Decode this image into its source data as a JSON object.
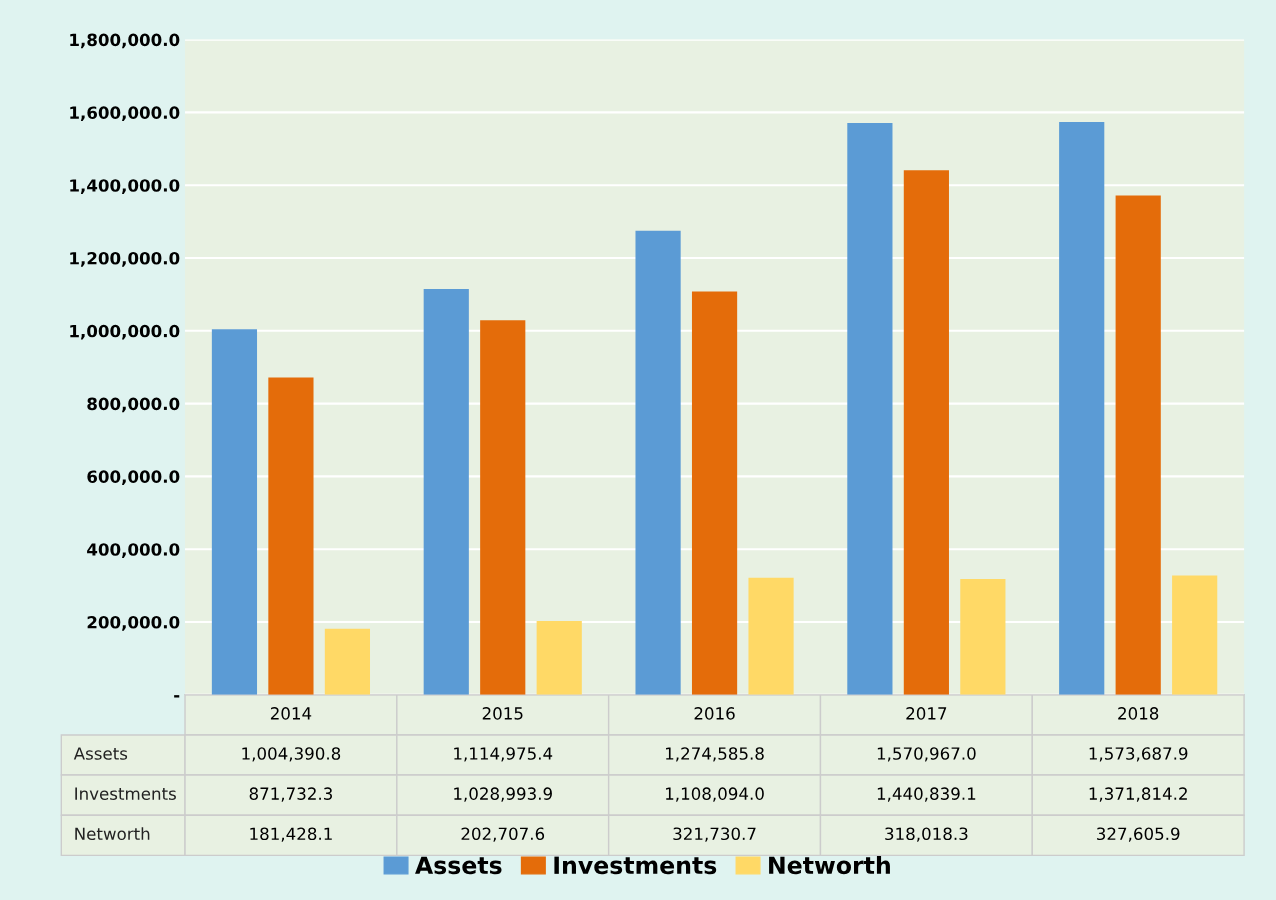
{
  "chart_data": {
    "type": "bar",
    "categories": [
      "2014",
      "2015",
      "2016",
      "2017",
      "2018"
    ],
    "series": [
      {
        "name": "Assets",
        "color": "#5b9bd5",
        "values": [
          1004390.8,
          1114975.4,
          1274585.8,
          1570967.0,
          1573687.9
        ],
        "value_labels": [
          "1,004,390.8",
          "1,114,975.4",
          "1,274,585.8",
          "1,570,967.0",
          "1,573,687.9"
        ]
      },
      {
        "name": "Investments",
        "color": "#e46c0a",
        "values": [
          871732.3,
          1028993.9,
          1108094.0,
          1440839.1,
          1371814.2
        ],
        "value_labels": [
          "871,732.3",
          "1,028,993.9",
          "1,108,094.0",
          "1,440,839.1",
          "1,371,814.2"
        ]
      },
      {
        "name": "Networth",
        "color": "#ffd966",
        "values": [
          181428.1,
          202707.6,
          321730.7,
          318018.3,
          327605.9
        ],
        "value_labels": [
          "181,428.1",
          "202,707.6",
          "321,730.7",
          "318,018.3",
          "327,605.9"
        ]
      }
    ],
    "ylim": [
      0,
      1800000
    ],
    "yticks": [
      {
        "value": 0,
        "label": "-"
      },
      {
        "value": 200000,
        "label": "200,000.0"
      },
      {
        "value": 400000,
        "label": "400,000.0"
      },
      {
        "value": 600000,
        "label": "600,000.0"
      },
      {
        "value": 800000,
        "label": "800,000.0"
      },
      {
        "value": 1000000,
        "label": "1,000,000.0"
      },
      {
        "value": 1200000,
        "label": "1,200,000.0"
      },
      {
        "value": 1400000,
        "label": "1,400,000.0"
      },
      {
        "value": 1600000,
        "label": "1,600,000.0"
      },
      {
        "value": 1800000,
        "label": "1,800,000.0"
      }
    ],
    "grid": "y",
    "legend": "bottom"
  }
}
